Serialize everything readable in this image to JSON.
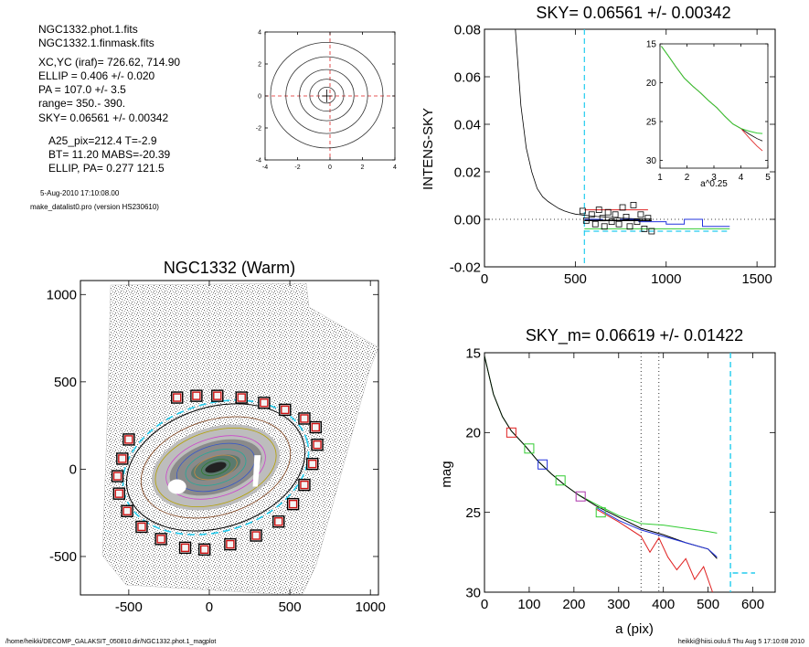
{
  "info": {
    "lines_a": [
      "NGC1332.phot.1.fits",
      "NGC1332.1.finmask.fits"
    ],
    "lines_b": [
      "XC,YC (iraf)=   726.62, 714.90",
      "ELLIP = 0.406 +/- 0.020",
      "PA    = 107.0 +/-   3.5",
      "range=  350.-  390.",
      "SKY= 0.06561 +/- 0.00342"
    ],
    "lines_c": [
      "A25_pix=212.4   T=-2.9",
      "BT=  11.20   MABS=-20.39",
      "ELLIP, PA= 0.277   121.5"
    ],
    "timestamp": "5-Aug-2010 17:10:08.00",
    "program": "make_datalist0.pro (version HS230610)"
  },
  "footer": {
    "left": "/home/heikki/DECOMP_GALAKSIT_050810.dir/NGC1332.phot.1_magplot",
    "right": "heikki@hiisi.oulu.fi  Thu Aug  5 17:10:08 2010"
  },
  "colors": {
    "cyan_dash": "#22ccee",
    "red": "#e02020",
    "green": "#33cc33",
    "blue": "#2233dd",
    "box_red": "#cc1111"
  },
  "chart_data": [
    {
      "id": "contour",
      "type": "contour",
      "xlim": [
        -4,
        4
      ],
      "ylim": [
        -4,
        4
      ],
      "xticks": [
        "-4",
        "-2",
        "0",
        "2",
        "4"
      ],
      "yticks": [
        "-4",
        "-2",
        "0",
        "2",
        "4"
      ],
      "levels_radius": [
        0.5,
        1.0,
        1.6,
        2.4,
        3.3
      ]
    },
    {
      "id": "sky",
      "type": "line",
      "title": "SKY= 0.06561 +/- 0.00342",
      "ylabel": "INTENS-SKY",
      "xlim": [
        0,
        1600
      ],
      "ylim": [
        -0.02,
        0.08
      ],
      "xticks": [
        "0",
        "500",
        "1000",
        "1500"
      ],
      "yticks": [
        "-0.02",
        "0.00",
        "0.02",
        "0.04",
        "0.06",
        "0.08"
      ],
      "vline_x": 550,
      "profile": {
        "x": [
          170,
          200,
          230,
          260,
          290,
          320,
          350,
          380,
          410,
          440,
          470,
          500,
          540,
          580,
          620,
          660,
          700,
          750,
          800,
          850,
          900,
          920
        ],
        "y": [
          0.085,
          0.048,
          0.03,
          0.02,
          0.013,
          0.0095,
          0.0075,
          0.006,
          0.0045,
          0.0035,
          0.0028,
          0.0022,
          0.0018,
          0.0015,
          0.0012,
          0.001,
          0.0008,
          0.0005,
          0.0003,
          0.0002,
          0.0002,
          0.0002
        ]
      },
      "box_points": {
        "x": [
          540,
          560,
          590,
          610,
          630,
          650,
          660,
          680,
          700,
          720,
          740,
          760,
          780,
          800,
          820,
          840,
          860,
          880,
          900,
          920
        ],
        "y": [
          0.0035,
          -0.0005,
          0.002,
          -0.002,
          0.004,
          0.0005,
          -0.003,
          0.003,
          -0.001,
          0.002,
          -0.002,
          0.005,
          0.001,
          -0.003,
          0.006,
          -0.001,
          0.002,
          -0.004,
          0.0005,
          -0.005
        ]
      },
      "blue_steps": {
        "x": [
          550,
          650,
          650,
          750,
          750,
          850,
          850,
          1000,
          1000,
          1100,
          1100,
          1200,
          1200,
          1350
        ],
        "y": [
          0.0,
          0.0,
          -0.0005,
          -0.0005,
          0.0,
          0.0,
          -0.001,
          -0.001,
          -0.002,
          -0.002,
          0.0,
          0.0,
          -0.003,
          -0.003
        ]
      },
      "red_line": {
        "x": [
          550,
          900
        ],
        "y": [
          0.004,
          0.004
        ]
      },
      "green_line": {
        "x": [
          550,
          1350
        ],
        "y": [
          -0.004,
          -0.004
        ]
      },
      "cyan_line": {
        "x": [
          550,
          1350
        ],
        "y": [
          -0.005,
          -0.005
        ]
      },
      "black_line": {
        "x": [
          550,
          920
        ],
        "y": [
          -0.0005,
          -0.0005
        ]
      },
      "inset": {
        "xlabel": "a^0.25",
        "xlim": [
          1,
          5
        ],
        "ylim": [
          15,
          31
        ],
        "xticks": [
          "1",
          "2",
          "3",
          "4",
          "5"
        ],
        "yticks": [
          "15",
          "20",
          "25",
          "30"
        ],
        "x": [
          1.05,
          1.3,
          1.6,
          1.9,
          2.2,
          2.5,
          2.8,
          3.1,
          3.4,
          3.7,
          4.0,
          4.3,
          4.6,
          4.8
        ],
        "y": [
          15.3,
          16.5,
          18.0,
          19.4,
          20.4,
          21.3,
          22.3,
          23.2,
          24.3,
          25.3,
          25.9,
          26.6,
          27.2,
          27.5
        ]
      }
    },
    {
      "id": "image",
      "type": "scatter",
      "title": "NGC1332 (Warm)",
      "xlim": [
        -800,
        1050
      ],
      "ylim": [
        -720,
        1080
      ],
      "xticks": [
        "-500",
        "0",
        "500",
        "1000"
      ],
      "yticks": [
        "-500",
        "0",
        "500",
        "1000"
      ],
      "sky_boxes": {
        "x": [
          -200,
          -80,
          50,
          200,
          340,
          470,
          590,
          660,
          670,
          640,
          590,
          520,
          430,
          290,
          130,
          -30,
          -150,
          -300,
          -420,
          -510,
          -560,
          -570,
          -540,
          -500
        ],
        "y": [
          410,
          420,
          420,
          410,
          380,
          340,
          290,
          240,
          140,
          30,
          -90,
          -200,
          -300,
          -380,
          -430,
          -460,
          -450,
          -400,
          -330,
          -240,
          -140,
          -40,
          60,
          170
        ]
      }
    },
    {
      "id": "mag",
      "type": "line",
      "title": "SKY_m=  0.06619 +/- 0.01422",
      "xlabel": "a (pix)",
      "ylabel": "mag",
      "xlim": [
        0,
        650
      ],
      "ylim": [
        15,
        30
      ],
      "xticks": [
        "0",
        "100",
        "200",
        "300",
        "400",
        "500",
        "600"
      ],
      "yticks": [
        "15",
        "20",
        "25",
        "30"
      ],
      "vlines_dotted": [
        350,
        390
      ],
      "vline_cyan": 550,
      "series": [
        {
          "color": "green",
          "x": [
            0,
            20,
            40,
            60,
            90,
            120,
            150,
            180,
            210,
            250,
            300,
            350,
            400,
            450,
            500,
            520
          ],
          "y": [
            15.2,
            17.6,
            19.0,
            19.9,
            20.8,
            21.8,
            22.6,
            23.3,
            23.9,
            24.5,
            25.2,
            25.7,
            25.8,
            26.0,
            26.2,
            26.3
          ]
        },
        {
          "color": "black",
          "x": [
            0,
            20,
            40,
            60,
            90,
            120,
            150,
            180,
            210,
            250,
            300,
            350,
            400,
            450,
            500,
            520
          ],
          "y": [
            15.2,
            17.6,
            19.0,
            19.9,
            20.8,
            21.8,
            22.6,
            23.3,
            23.9,
            24.6,
            25.3,
            26.0,
            26.4,
            26.9,
            27.3,
            27.9
          ]
        },
        {
          "color": "blue",
          "x": [
            250,
            300,
            350,
            400,
            450,
            500,
            520
          ],
          "y": [
            24.7,
            25.5,
            26.1,
            26.5,
            26.9,
            27.3,
            27.8
          ]
        },
        {
          "color": "red",
          "x": [
            250,
            300,
            350,
            370,
            390,
            410,
            430,
            450,
            470,
            490,
            510
          ],
          "y": [
            24.8,
            25.6,
            26.5,
            27.5,
            26.6,
            27.8,
            28.6,
            27.9,
            29.2,
            28.4,
            30.0
          ]
        }
      ],
      "squares": {
        "x": [
          60,
          100,
          130,
          170,
          215,
          260
        ],
        "y": [
          20.0,
          21.0,
          22.0,
          23.0,
          24.0,
          25.0
        ],
        "colors": [
          "red",
          "green",
          "blue",
          "green",
          "purple",
          "green"
        ]
      },
      "cyan_segment": {
        "x": [
          555,
          605
        ],
        "y": [
          28.8,
          28.8
        ]
      }
    }
  ]
}
